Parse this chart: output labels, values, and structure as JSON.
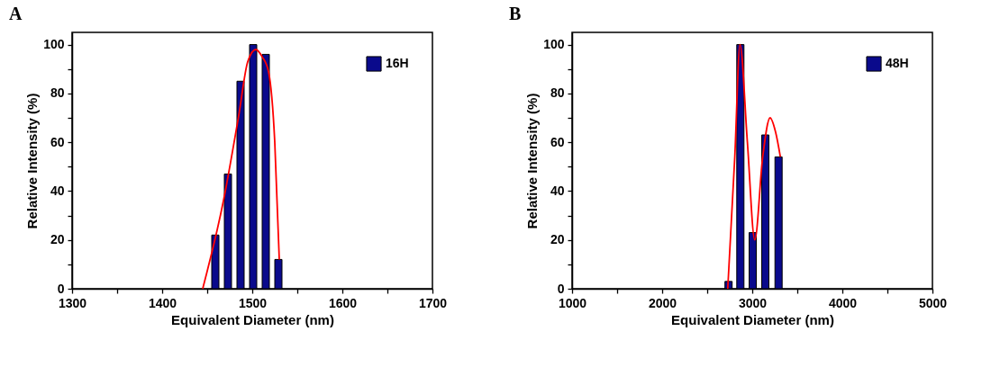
{
  "chart_data": [
    {
      "type": "bar",
      "title": "A",
      "xlabel": "Equivalent  Diameter (nm)",
      "ylabel": "Relative Intensity (%)",
      "legend": "top right",
      "xlim": [
        1300,
        1700
      ],
      "xticks": [
        1300,
        {
          "value": 1350,
          "label": null
        },
        1400,
        {
          "value": 1450,
          "label": null
        },
        1500,
        {
          "value": 1550,
          "label": null
        },
        1600,
        {
          "value": 1650,
          "label": null
        },
        1700
      ],
      "ylim": [
        0,
        105
      ],
      "yticks": [
        0,
        {
          "value": 10,
          "label": null
        },
        20,
        {
          "value": 30,
          "label": null
        },
        40,
        {
          "value": 50,
          "label": null
        },
        60,
        {
          "value": 70,
          "label": null
        },
        80,
        {
          "value": 90,
          "label": null
        },
        100
      ],
      "series": [
        {
          "name": "16H",
          "type": "bar",
          "color": "#0a0a8c",
          "x": [
            1459,
            1473,
            1487,
            1501,
            1515,
            1529
          ],
          "values": [
            22,
            47,
            85,
            100,
            96,
            12
          ]
        },
        {
          "type": "line",
          "color": "#ff0000",
          "x": [
            1445,
            1468,
            1485,
            1495,
            1504,
            1511,
            1518,
            1525,
            1530
          ],
          "values": [
            0,
            36,
            71,
            93,
            98,
            95,
            89,
            60,
            12
          ]
        }
      ]
    },
    {
      "type": "bar",
      "title": "B",
      "xlabel": "Equivalent  Diameter (nm)",
      "ylabel": "Relative Intensity (%)",
      "legend": "top right",
      "xlim": [
        1000,
        5000
      ],
      "xticks": [
        1000,
        {
          "value": 1500,
          "label": null
        },
        2000,
        {
          "value": 2500,
          "label": null
        },
        3000,
        {
          "value": 3500,
          "label": null
        },
        4000,
        {
          "value": 4500,
          "label": null
        },
        5000
      ],
      "ylim": [
        0,
        105
      ],
      "yticks": [
        0,
        {
          "value": 10,
          "label": null
        },
        20,
        {
          "value": 30,
          "label": null
        },
        40,
        {
          "value": 50,
          "label": null
        },
        60,
        {
          "value": 70,
          "label": null
        },
        80,
        {
          "value": 90,
          "label": null
        },
        100
      ],
      "series": [
        {
          "name": "48H",
          "type": "bar",
          "color": "#0a0a8c",
          "x": [
            2737,
            2868,
            3005,
            3145,
            3292
          ],
          "values": [
            3,
            100,
            23,
            63,
            54
          ]
        },
        {
          "type": "line",
          "color": "#ff0000",
          "x": [
            2728,
            2806,
            2864,
            2946,
            3028,
            3116,
            3198,
            3260,
            3312
          ],
          "values": [
            0,
            54,
            100,
            60,
            20,
            54,
            70,
            64,
            54
          ]
        }
      ]
    }
  ]
}
